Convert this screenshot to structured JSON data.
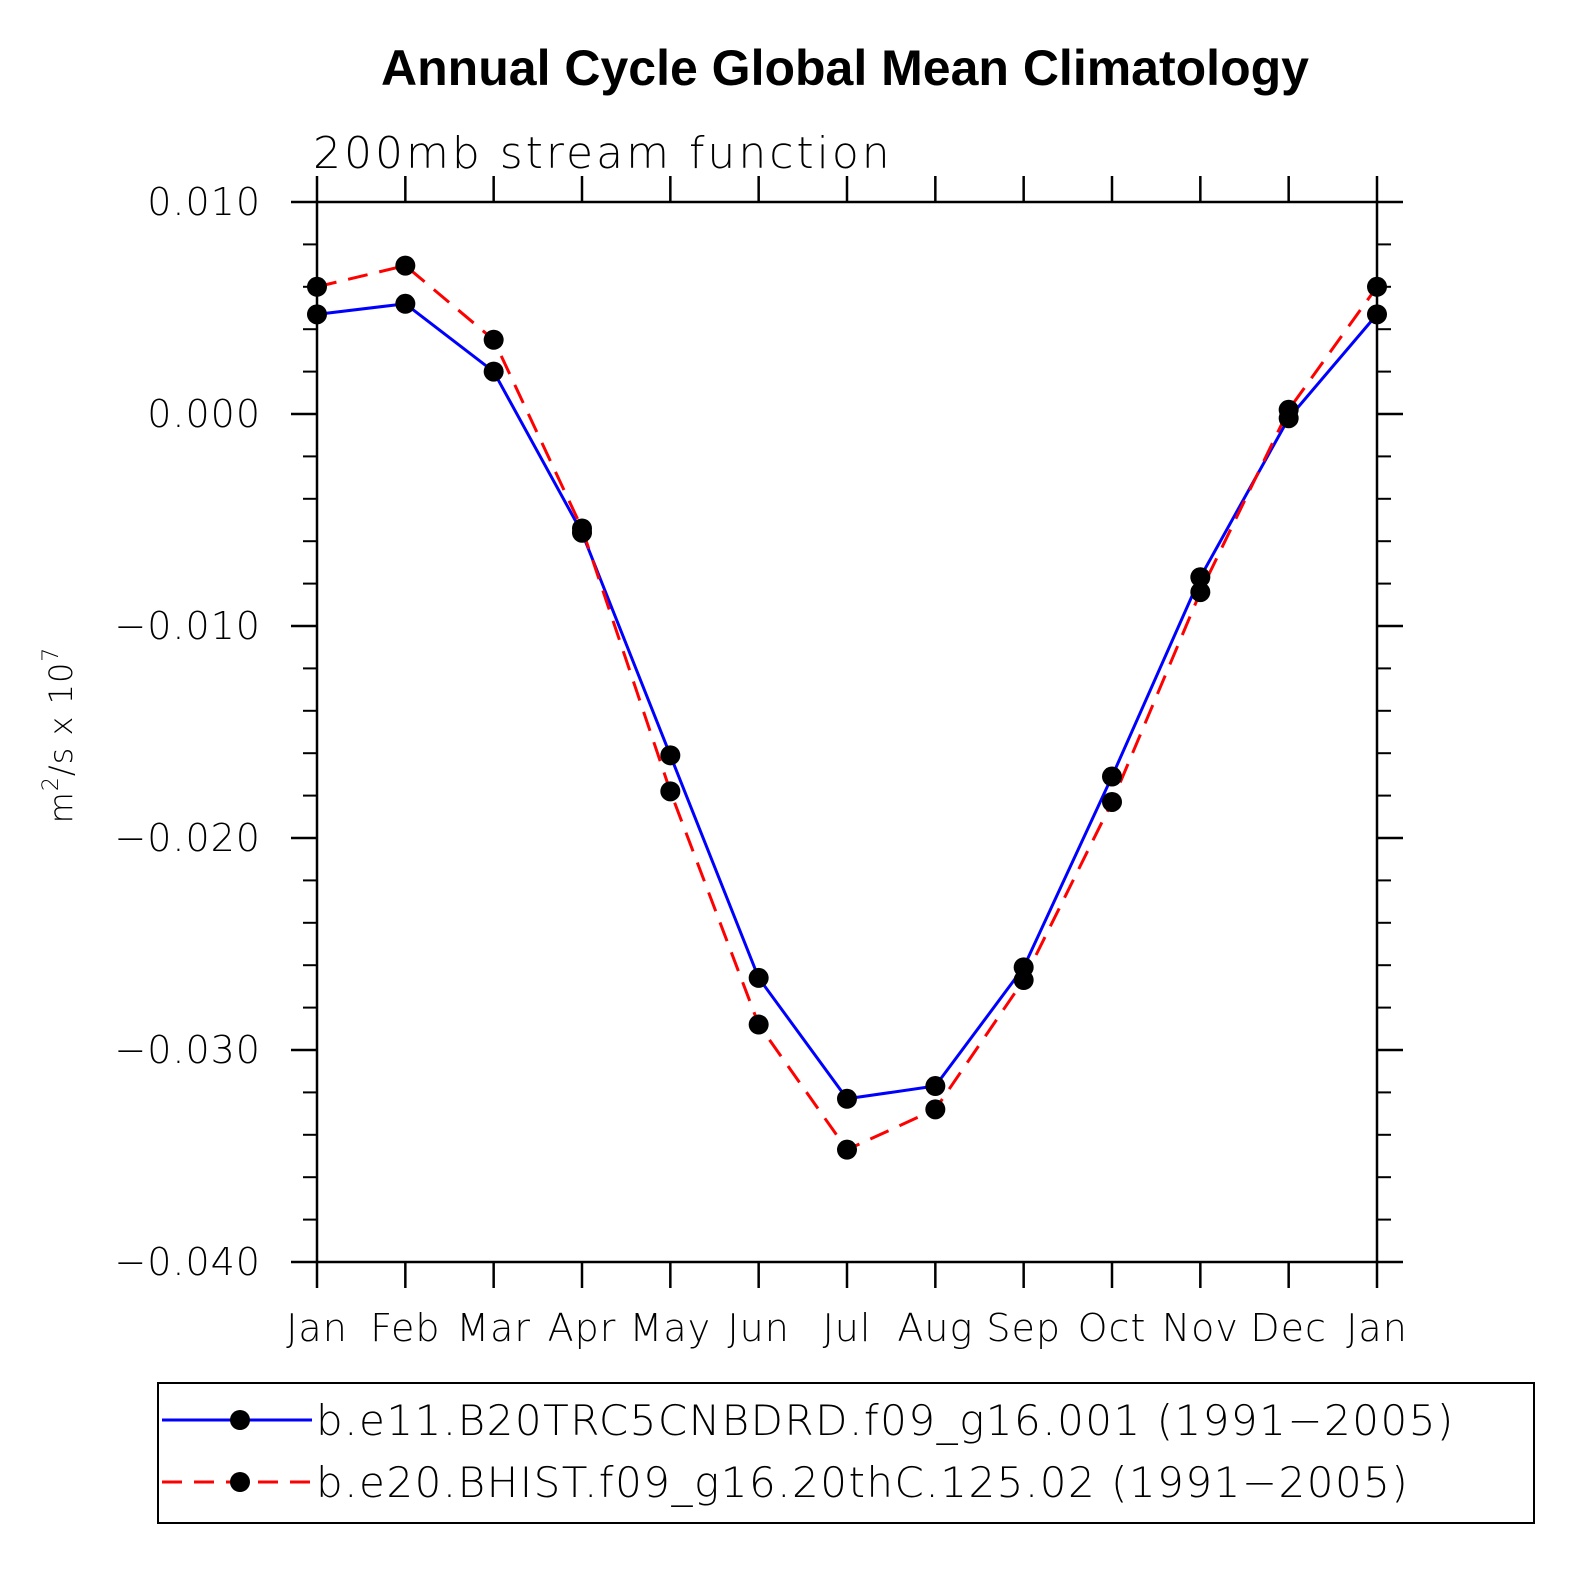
{
  "chart_data": {
    "type": "line",
    "title": "Annual Cycle Global Mean Climatology",
    "subtitle": "200mb stream function",
    "ylabel": "m²/s x 10⁷",
    "ylabel_parts": {
      "base": "m",
      "exp1": "2",
      "mid": "/s x 10",
      "exp2": "7"
    },
    "xlabel": "",
    "categories": [
      "Jan",
      "Feb",
      "Mar",
      "Apr",
      "May",
      "Jun",
      "Jul",
      "Aug",
      "Sep",
      "Oct",
      "Nov",
      "Dec",
      "Jan"
    ],
    "ylim": [
      -0.04,
      0.01
    ],
    "yticks": [
      0.01,
      0.0,
      -0.01,
      -0.02,
      -0.03,
      -0.04
    ],
    "ytick_labels": [
      "0.010",
      "0.000",
      "−0.010",
      "−0.020",
      "−0.030",
      "−0.040"
    ],
    "series": [
      {
        "name": "b.e11.B20TRC5CNBDRD.f09_g16.001 (1991−2005)",
        "color": "#0000ff",
        "dash": "solid",
        "values": [
          0.0047,
          0.0052,
          0.002,
          -0.0056,
          -0.0161,
          -0.0266,
          -0.0323,
          -0.0317,
          -0.0261,
          -0.0171,
          -0.0077,
          -0.0002,
          0.0047
        ]
      },
      {
        "name": "b.e20.BHIST.f09_g16.20thC.125.02 (1991−2005)",
        "color": "#ff0000",
        "dash": "dashed",
        "values": [
          0.006,
          0.007,
          0.0035,
          -0.0054,
          -0.0178,
          -0.0288,
          -0.0347,
          -0.0328,
          -0.0267,
          -0.0183,
          -0.0084,
          0.0002,
          0.006
        ]
      }
    ],
    "legend_position": "bottom",
    "grid": false
  }
}
